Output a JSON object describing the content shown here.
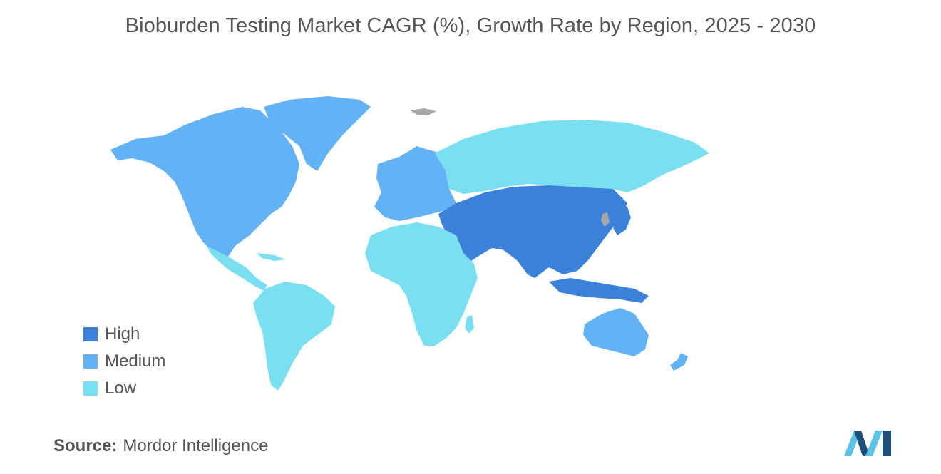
{
  "title": "Bioburden Testing Market CAGR (%), Growth Rate by Region, 2025 - 2030",
  "legend": [
    {
      "label": "High",
      "color": "#3b80d9"
    },
    {
      "label": "Medium",
      "color": "#62b2f5"
    },
    {
      "label": "Low",
      "color": "#7adff0"
    }
  ],
  "no_data_color": "#a6a6a6",
  "source": {
    "label": "Source:",
    "value": "Mordor Intelligence"
  },
  "logo_colors": {
    "dark": "#1f4e79",
    "light": "#5bc4e6"
  },
  "regions": [
    {
      "name": "North America",
      "level": "Medium"
    },
    {
      "name": "Europe",
      "level": "Medium"
    },
    {
      "name": "Asia-Pacific",
      "level": "High"
    },
    {
      "name": "Australia and New Zealand",
      "level": "Medium"
    },
    {
      "name": "Russia",
      "level": "Low"
    },
    {
      "name": "South America",
      "level": "Low"
    },
    {
      "name": "Africa",
      "level": "Low"
    }
  ]
}
